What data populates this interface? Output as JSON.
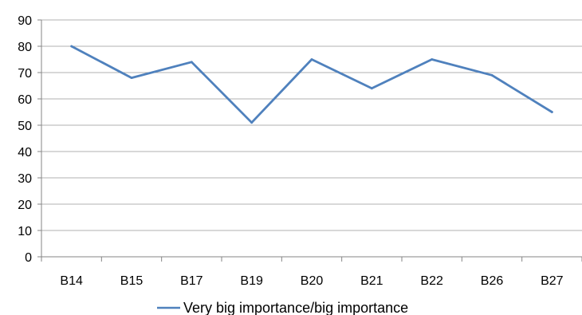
{
  "chart_data": {
    "type": "line",
    "categories": [
      "B14",
      "B15",
      "B17",
      "B19",
      "B20",
      "B21",
      "B22",
      "B26",
      "B27"
    ],
    "series": [
      {
        "name": "Very big importance/big importance",
        "values": [
          80,
          68,
          74,
          51,
          75,
          64,
          75,
          69,
          55
        ]
      }
    ],
    "ylim": [
      0,
      90
    ],
    "yticks": [
      0,
      10,
      20,
      30,
      40,
      50,
      60,
      70,
      80,
      90
    ],
    "grid": true,
    "legend_position": "bottom",
    "colors": {
      "series": "#4f81bd",
      "grid": "#b0b0b0",
      "axis": "#868686"
    }
  }
}
